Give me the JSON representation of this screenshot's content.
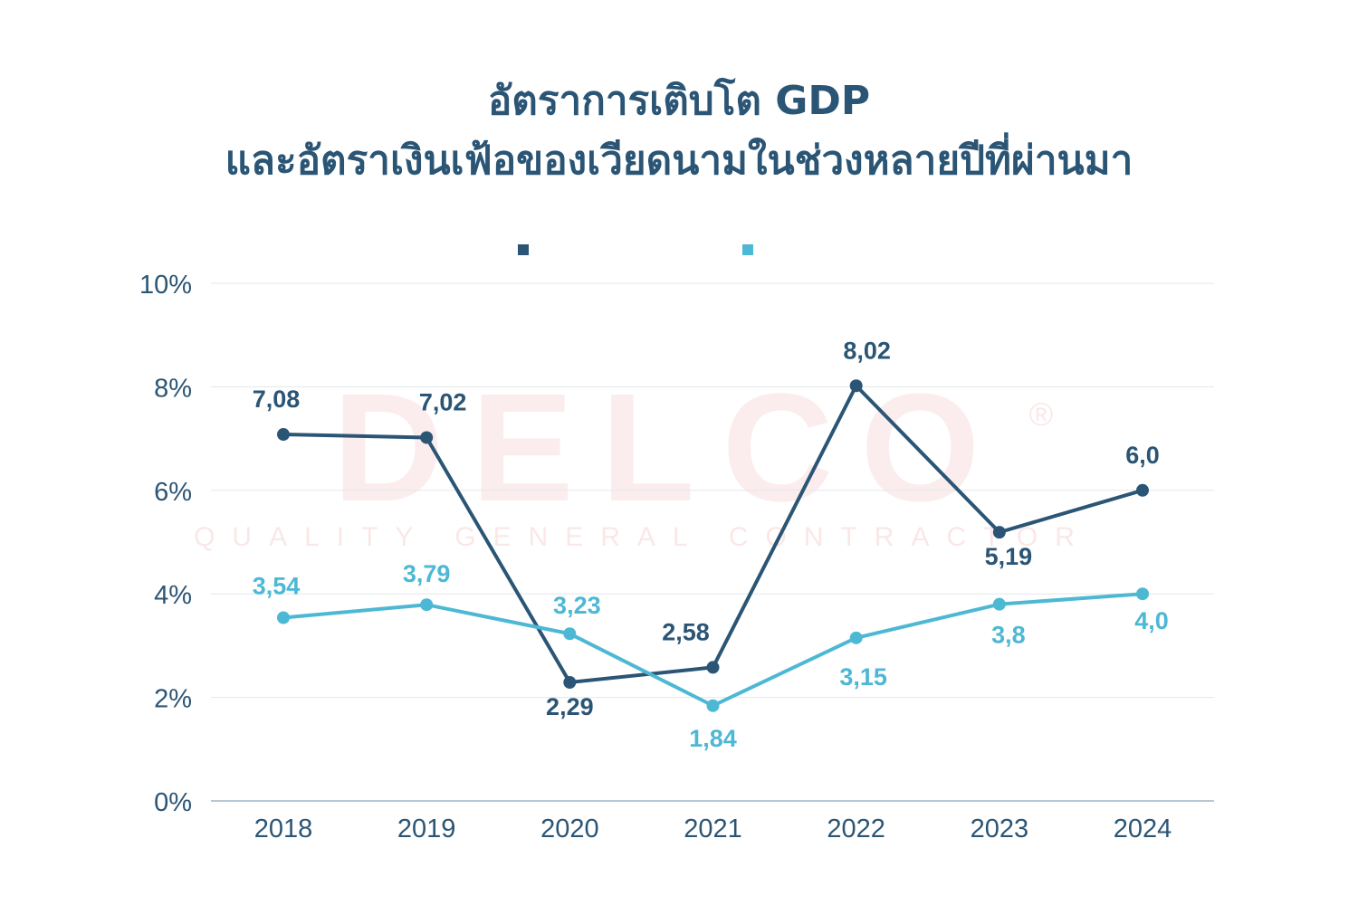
{
  "title_line1": "อัตราการเติบโต GDP",
  "title_line2": "และอัตราเงินเฟ้อของเวียดนามในช่วงหลายปีที่ผ่านมา",
  "watermark": {
    "logo": "DELCO",
    "tagline": "QUALITY GENERAL CONTRACTOR"
  },
  "chart_data": {
    "type": "line",
    "title": "อัตราการเติบโต GDP และอัตราเงินเฟ้อของเวียดนามในช่วงหลายปีที่ผ่านมา",
    "categories": [
      "2018",
      "2019",
      "2020",
      "2021",
      "2022",
      "2023",
      "2024"
    ],
    "yticks": [
      "0%",
      "2%",
      "4%",
      "6%",
      "8%",
      "10%"
    ],
    "ylim": [
      0,
      10
    ],
    "grid": true,
    "legend": "top-center",
    "series": [
      {
        "color": "#2b5575",
        "values": [
          7.08,
          7.02,
          2.29,
          2.58,
          8.02,
          5.19,
          6.0
        ],
        "labels": [
          "7,08",
          "7,02",
          "2,29",
          "2,58",
          "8,02",
          "5,19",
          "6,0"
        ]
      },
      {
        "color": "#4db8d4",
        "values": [
          3.54,
          3.79,
          3.23,
          1.84,
          3.15,
          3.8,
          4.0
        ],
        "labels": [
          "3,54",
          "3,79",
          "3,23",
          "1,84",
          "3,15",
          "3,8",
          "4,0"
        ]
      }
    ]
  }
}
